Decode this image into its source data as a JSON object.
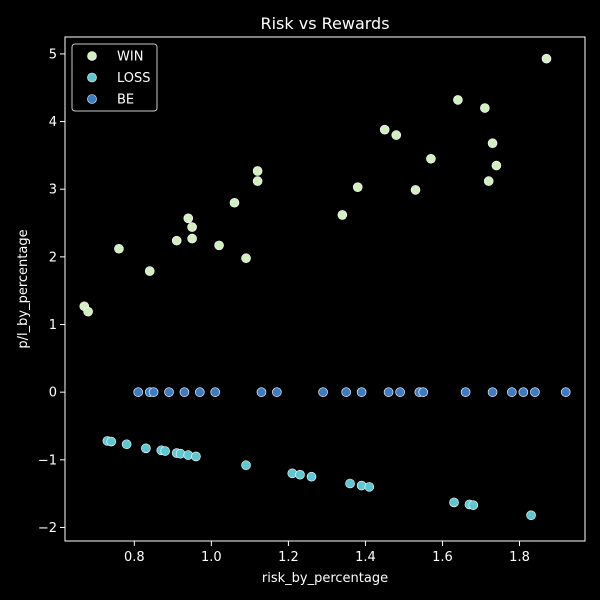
{
  "chart_data": {
    "type": "scatter",
    "title": "Risk vs Rewards",
    "xlabel": "risk_by_percentage",
    "ylabel": "p/l_by_percentage",
    "xlim": [
      0.62,
      1.97
    ],
    "ylim": [
      -2.2,
      5.25
    ],
    "xticks": [
      0.8,
      1.0,
      1.2,
      1.4,
      1.6,
      1.8
    ],
    "xtick_labels": [
      "0.8",
      "1.0",
      "1.2",
      "1.4",
      "1.6",
      "1.8"
    ],
    "yticks": [
      -2,
      -1,
      0,
      1,
      2,
      3,
      4,
      5
    ],
    "ytick_labels": [
      "−2",
      "−1",
      "0",
      "1",
      "2",
      "3",
      "4",
      "5"
    ],
    "grid": false,
    "legend_position": "top-left",
    "series": [
      {
        "name": "WIN",
        "color": "#d2f0bf",
        "points": [
          [
            0.67,
            1.27
          ],
          [
            0.68,
            1.19
          ],
          [
            0.76,
            2.12
          ],
          [
            0.84,
            1.79
          ],
          [
            0.91,
            2.24
          ],
          [
            0.94,
            2.57
          ],
          [
            0.95,
            2.44
          ],
          [
            0.95,
            2.27
          ],
          [
            1.02,
            2.17
          ],
          [
            1.06,
            2.8
          ],
          [
            1.09,
            1.98
          ],
          [
            1.12,
            3.27
          ],
          [
            1.12,
            3.12
          ],
          [
            1.34,
            2.62
          ],
          [
            1.38,
            3.03
          ],
          [
            1.45,
            3.88
          ],
          [
            1.48,
            3.8
          ],
          [
            1.53,
            2.99
          ],
          [
            1.57,
            3.45
          ],
          [
            1.64,
            4.32
          ],
          [
            1.71,
            4.2
          ],
          [
            1.72,
            3.12
          ],
          [
            1.73,
            3.68
          ],
          [
            1.74,
            3.35
          ],
          [
            1.87,
            4.93
          ]
        ]
      },
      {
        "name": "LOSS",
        "color": "#5dc8d1",
        "points": [
          [
            0.73,
            -0.72
          ],
          [
            0.74,
            -0.73
          ],
          [
            0.78,
            -0.77
          ],
          [
            0.83,
            -0.83
          ],
          [
            0.87,
            -0.86
          ],
          [
            0.88,
            -0.87
          ],
          [
            0.91,
            -0.9
          ],
          [
            0.92,
            -0.91
          ],
          [
            0.94,
            -0.93
          ],
          [
            0.96,
            -0.95
          ],
          [
            1.09,
            -1.08
          ],
          [
            1.21,
            -1.2
          ],
          [
            1.23,
            -1.22
          ],
          [
            1.26,
            -1.25
          ],
          [
            1.36,
            -1.35
          ],
          [
            1.39,
            -1.38
          ],
          [
            1.41,
            -1.4
          ],
          [
            1.63,
            -1.63
          ],
          [
            1.67,
            -1.66
          ],
          [
            1.68,
            -1.67
          ],
          [
            1.83,
            -1.82
          ]
        ]
      },
      {
        "name": "BE",
        "color": "#3d7cc4",
        "points": [
          [
            0.81,
            0
          ],
          [
            0.84,
            0
          ],
          [
            0.85,
            0
          ],
          [
            0.89,
            0
          ],
          [
            0.93,
            0
          ],
          [
            0.97,
            0
          ],
          [
            1.01,
            0
          ],
          [
            1.13,
            0
          ],
          [
            1.17,
            0
          ],
          [
            1.29,
            0
          ],
          [
            1.35,
            0
          ],
          [
            1.39,
            0
          ],
          [
            1.46,
            0
          ],
          [
            1.49,
            0
          ],
          [
            1.54,
            0
          ],
          [
            1.55,
            0
          ],
          [
            1.66,
            0
          ],
          [
            1.73,
            0
          ],
          [
            1.78,
            0
          ],
          [
            1.81,
            0
          ],
          [
            1.84,
            0
          ],
          [
            1.92,
            0
          ]
        ]
      }
    ]
  }
}
